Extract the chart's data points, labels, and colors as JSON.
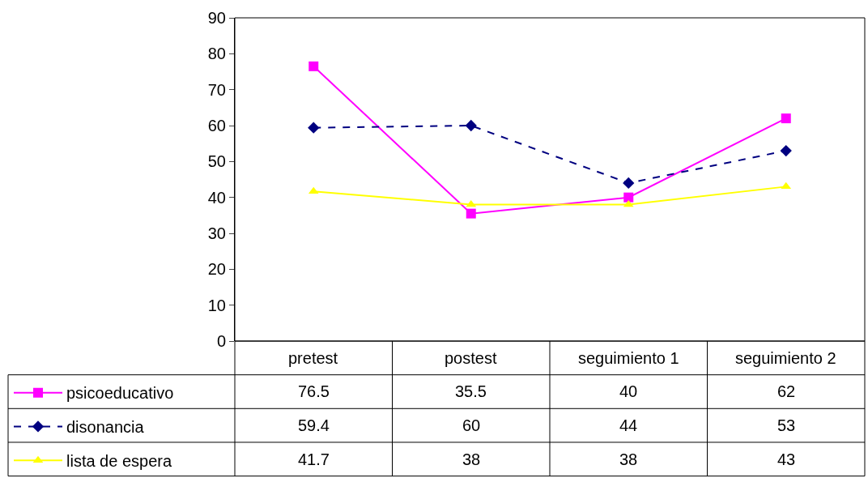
{
  "chart_data": {
    "type": "line",
    "categories": [
      "pretest",
      "postest",
      "seguimiento 1",
      "seguimiento 2"
    ],
    "series": [
      {
        "name": "psicoeducativo",
        "color": "#ff00ff",
        "values": [
          76.5,
          35.5,
          40,
          62
        ],
        "marker": "square",
        "line_style": "solid"
      },
      {
        "name": "disonancia",
        "color": "#000080",
        "values": [
          59.4,
          60,
          44,
          53
        ],
        "marker": "diamond",
        "line_style": "dashed"
      },
      {
        "name": "lista de espera",
        "color": "#ffff00",
        "values": [
          41.7,
          38,
          38,
          43
        ],
        "marker": "triangle",
        "line_style": "solid"
      }
    ],
    "ylim": [
      0,
      90
    ],
    "yticks": [
      0,
      10,
      20,
      30,
      40,
      50,
      60,
      70,
      80,
      90
    ],
    "legend": "bottom",
    "data_labels": true
  }
}
